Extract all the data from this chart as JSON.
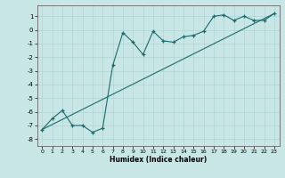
{
  "xlabel": "Humidex (Indice chaleur)",
  "background_color": "#c8e6e6",
  "line_color": "#1a6b6b",
  "grid_color": "#afd4d4",
  "xlim": [
    -0.5,
    23.5
  ],
  "ylim": [
    -8.5,
    1.8
  ],
  "xticks": [
    0,
    1,
    2,
    3,
    4,
    5,
    6,
    7,
    8,
    9,
    10,
    11,
    12,
    13,
    14,
    15,
    16,
    17,
    18,
    19,
    20,
    21,
    22,
    23
  ],
  "yticks": [
    -8,
    -7,
    -6,
    -5,
    -4,
    -3,
    -2,
    -1,
    0,
    1
  ],
  "curve_x": [
    0,
    1,
    2,
    3,
    4,
    5,
    6,
    7,
    8,
    9,
    10,
    11,
    12,
    13,
    14,
    15,
    16,
    17,
    18,
    19,
    20,
    21,
    22,
    23
  ],
  "curve_y": [
    -7.3,
    -6.5,
    -5.9,
    -7.0,
    -7.0,
    -7.5,
    -7.2,
    -2.6,
    -0.2,
    -0.9,
    -1.8,
    -0.1,
    -0.8,
    -0.9,
    -0.5,
    -0.4,
    -0.1,
    1.0,
    1.1,
    0.7,
    1.0,
    0.7,
    0.7,
    1.2
  ],
  "line_x": [
    0,
    23
  ],
  "line_y": [
    -7.3,
    1.2
  ]
}
